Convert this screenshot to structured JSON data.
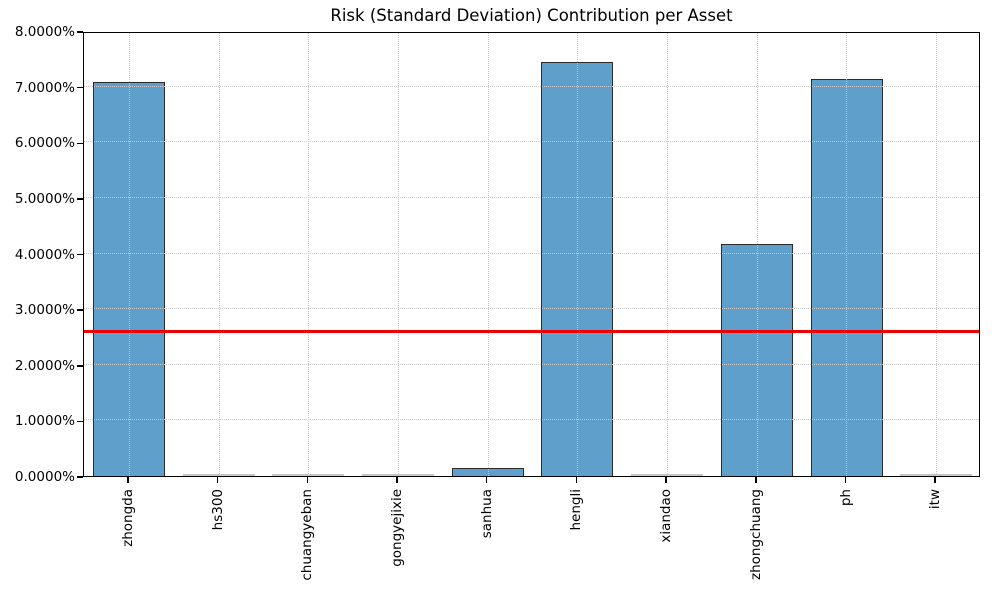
{
  "chart_data": {
    "type": "bar",
    "title": "Risk (Standard Deviation) Contribution per Asset",
    "categories": [
      "zhongda",
      "hs300",
      "chuangyeban",
      "gongyejixie",
      "sanhua",
      "hengli",
      "xiandao",
      "zhongchuang",
      "ph",
      "itw"
    ],
    "values": [
      7.08,
      0.005,
      0.005,
      0.005,
      0.14,
      7.44,
      0.005,
      4.18,
      7.14,
      0.005
    ],
    "unit": "percent",
    "xlabel": "",
    "ylabel": "",
    "ylim": [
      0,
      8
    ],
    "ytick_step": 1,
    "ytick_labels": [
      "0.0000%",
      "1.0000%",
      "2.0000%",
      "3.0000%",
      "4.0000%",
      "5.0000%",
      "6.0000%",
      "7.0000%",
      "8.0000%"
    ],
    "reference_line": {
      "value": 2.6,
      "color": "#ee0000"
    },
    "grid": "dotted-both-axes",
    "legend_position": "none",
    "colors": {
      "bar_fill": "#5f9fcc",
      "bar_edge": "#2c2c2c",
      "near_zero_bar": "#c6c6c6",
      "grid": "#c9c9c9",
      "spine": "#000000",
      "text": "#000000"
    }
  }
}
